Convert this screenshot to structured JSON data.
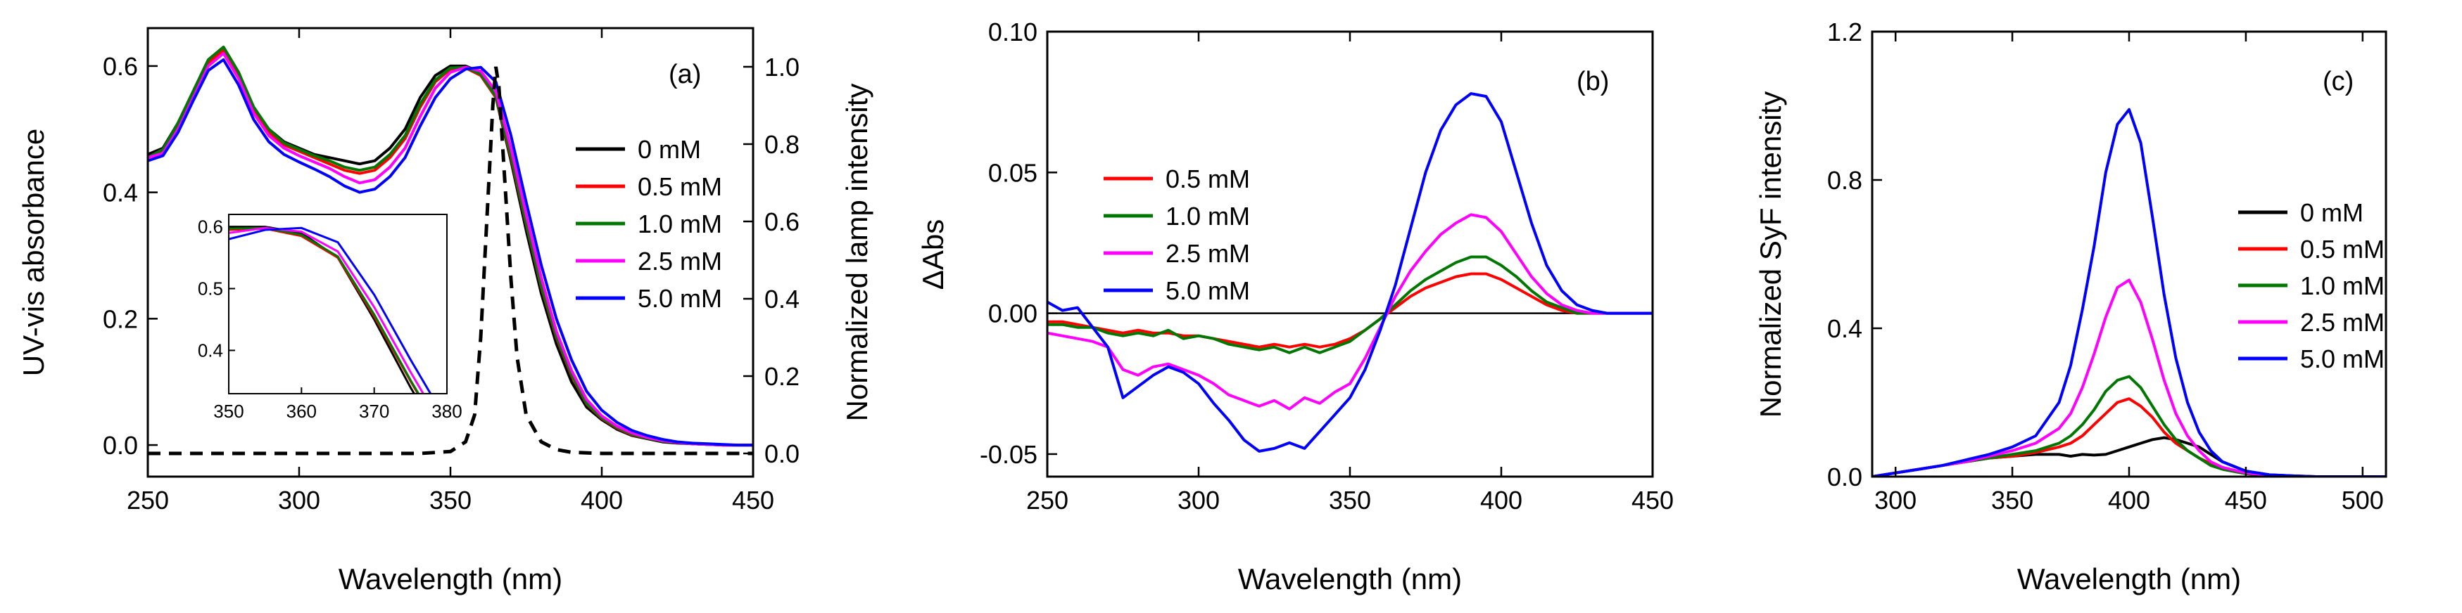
{
  "chart_data": [
    {
      "type": "line",
      "panel_label": "(a)",
      "xlabel": "Wavelength (nm)",
      "ylabel": "UV-vis absorbance",
      "y2label": "Normalized lamp intensity",
      "xlim": [
        250,
        450
      ],
      "ylim": [
        -0.05,
        0.66
      ],
      "y2lim": [
        -0.06,
        1.1
      ],
      "xticks": [
        250,
        300,
        350,
        400,
        450
      ],
      "yticks": [
        0.0,
        0.2,
        0.4,
        0.6
      ],
      "ytick_labels": [
        "0.0",
        "0.2",
        "0.4",
        "0.6"
      ],
      "y2ticks": [
        0.0,
        0.2,
        0.4,
        0.6,
        0.8,
        1.0
      ],
      "y2tick_labels": [
        "0.0",
        "0.2",
        "0.4",
        "0.6",
        "0.8",
        "1.0"
      ],
      "legend_position": "right",
      "x": [
        250,
        255,
        260,
        265,
        270,
        275,
        280,
        285,
        290,
        295,
        300,
        305,
        310,
        315,
        320,
        325,
        330,
        335,
        340,
        345,
        350,
        355,
        360,
        365,
        370,
        375,
        380,
        385,
        390,
        395,
        400,
        405,
        410,
        415,
        420,
        425,
        430,
        435,
        440,
        445,
        450
      ],
      "series": [
        {
          "name": "0 mM",
          "color": "#000000",
          "values": [
            0.46,
            0.47,
            0.51,
            0.56,
            0.61,
            0.63,
            0.59,
            0.53,
            0.5,
            0.48,
            0.47,
            0.46,
            0.455,
            0.45,
            0.445,
            0.45,
            0.47,
            0.5,
            0.55,
            0.585,
            0.6,
            0.6,
            0.59,
            0.55,
            0.45,
            0.34,
            0.24,
            0.16,
            0.1,
            0.06,
            0.04,
            0.025,
            0.015,
            0.01,
            0.005,
            0.003,
            0.002,
            0.001,
            0.0,
            0.0,
            0.0
          ]
        },
        {
          "name": "0.5 mM",
          "color": "#ff0000",
          "values": [
            0.455,
            0.465,
            0.505,
            0.555,
            0.605,
            0.625,
            0.585,
            0.53,
            0.495,
            0.475,
            0.465,
            0.455,
            0.445,
            0.435,
            0.43,
            0.435,
            0.455,
            0.485,
            0.535,
            0.575,
            0.595,
            0.597,
            0.585,
            0.55,
            0.455,
            0.35,
            0.25,
            0.17,
            0.11,
            0.065,
            0.042,
            0.027,
            0.016,
            0.011,
            0.006,
            0.004,
            0.002,
            0.001,
            0.0,
            0.0,
            0.0
          ]
        },
        {
          "name": "1.0 mM",
          "color": "#007700",
          "values": [
            0.455,
            0.468,
            0.51,
            0.56,
            0.61,
            0.63,
            0.59,
            0.535,
            0.5,
            0.478,
            0.468,
            0.458,
            0.45,
            0.44,
            0.435,
            0.44,
            0.46,
            0.49,
            0.54,
            0.578,
            0.597,
            0.598,
            0.587,
            0.552,
            0.458,
            0.352,
            0.252,
            0.172,
            0.112,
            0.066,
            0.043,
            0.028,
            0.017,
            0.011,
            0.006,
            0.004,
            0.002,
            0.001,
            0.0,
            0.0,
            0.0
          ]
        },
        {
          "name": "2.5 mM",
          "color": "#ff00ff",
          "values": [
            0.455,
            0.462,
            0.5,
            0.55,
            0.6,
            0.62,
            0.58,
            0.525,
            0.49,
            0.47,
            0.458,
            0.448,
            0.438,
            0.425,
            0.415,
            0.42,
            0.44,
            0.47,
            0.52,
            0.565,
            0.59,
            0.598,
            0.592,
            0.56,
            0.47,
            0.365,
            0.265,
            0.18,
            0.118,
            0.072,
            0.046,
            0.03,
            0.019,
            0.012,
            0.007,
            0.004,
            0.002,
            0.001,
            0.0,
            0.0,
            0.0
          ]
        },
        {
          "name": "5.0 mM",
          "color": "#0000ff",
          "values": [
            0.45,
            0.458,
            0.495,
            0.545,
            0.593,
            0.61,
            0.57,
            0.515,
            0.48,
            0.46,
            0.448,
            0.437,
            0.425,
            0.41,
            0.4,
            0.405,
            0.425,
            0.455,
            0.505,
            0.55,
            0.58,
            0.595,
            0.598,
            0.575,
            0.49,
            0.385,
            0.285,
            0.2,
            0.135,
            0.085,
            0.055,
            0.036,
            0.023,
            0.015,
            0.009,
            0.005,
            0.003,
            0.002,
            0.001,
            0.0,
            0.0
          ]
        }
      ],
      "lamp": {
        "name": "lamp",
        "color": "#000000",
        "style": "dashed",
        "x": [
          250,
          300,
          340,
          350,
          355,
          358,
          360,
          362,
          364,
          365,
          366,
          368,
          370,
          372,
          375,
          380,
          385,
          390,
          400,
          450
        ],
        "values": [
          0.0,
          0.0,
          0.0,
          0.005,
          0.03,
          0.1,
          0.3,
          0.6,
          0.9,
          1.0,
          0.95,
          0.7,
          0.45,
          0.25,
          0.1,
          0.03,
          0.01,
          0.003,
          0.0,
          0.0
        ]
      },
      "inset": {
        "xlim": [
          350,
          380
        ],
        "ylim": [
          0.33,
          0.62
        ],
        "xticks": [
          350,
          360,
          370,
          380
        ],
        "yticks": [
          0.4,
          0.5,
          0.6
        ],
        "ytick_labels": [
          "0.4",
          "0.5",
          "0.6"
        ]
      }
    },
    {
      "type": "line",
      "panel_label": "(b)",
      "xlabel": "Wavelength (nm)",
      "ylabel": "ΔAbs",
      "xlim": [
        250,
        450
      ],
      "ylim": [
        -0.058,
        0.1
      ],
      "xticks": [
        250,
        300,
        350,
        400,
        450
      ],
      "yticks": [
        -0.05,
        0.0,
        0.05,
        0.1
      ],
      "ytick_labels": [
        "-0.05",
        "0.00",
        "0.05",
        "0.10"
      ],
      "legend_position": "left",
      "x": [
        250,
        255,
        260,
        265,
        270,
        275,
        280,
        285,
        290,
        295,
        300,
        305,
        310,
        315,
        320,
        325,
        330,
        335,
        340,
        345,
        350,
        355,
        360,
        365,
        370,
        375,
        380,
        385,
        390,
        395,
        400,
        405,
        410,
        415,
        420,
        425,
        430,
        435,
        440,
        445,
        450
      ],
      "series": [
        {
          "name": "0.5 mM",
          "color": "#ff0000",
          "values": [
            -0.003,
            -0.003,
            -0.004,
            -0.005,
            -0.006,
            -0.007,
            -0.006,
            -0.007,
            -0.007,
            -0.008,
            -0.008,
            -0.009,
            -0.01,
            -0.011,
            -0.012,
            -0.011,
            -0.012,
            -0.011,
            -0.012,
            -0.011,
            -0.009,
            -0.006,
            -0.002,
            0.002,
            0.006,
            0.009,
            0.011,
            0.013,
            0.014,
            0.014,
            0.012,
            0.009,
            0.006,
            0.003,
            0.001,
            0.0,
            0.0,
            0.0,
            0.0,
            0.0,
            0.0
          ]
        },
        {
          "name": "1.0 mM",
          "color": "#007700",
          "values": [
            -0.004,
            -0.004,
            -0.005,
            -0.005,
            -0.007,
            -0.008,
            -0.007,
            -0.008,
            -0.006,
            -0.009,
            -0.008,
            -0.009,
            -0.011,
            -0.012,
            -0.013,
            -0.012,
            -0.014,
            -0.012,
            -0.014,
            -0.012,
            -0.01,
            -0.006,
            -0.002,
            0.003,
            0.008,
            0.012,
            0.015,
            0.018,
            0.02,
            0.02,
            0.017,
            0.013,
            0.008,
            0.004,
            0.002,
            0.0,
            0.0,
            0.0,
            0.0,
            0.0,
            0.0
          ]
        },
        {
          "name": "2.5 mM",
          "color": "#ff00ff",
          "values": [
            -0.007,
            -0.008,
            -0.009,
            -0.01,
            -0.012,
            -0.02,
            -0.022,
            -0.019,
            -0.018,
            -0.02,
            -0.022,
            -0.025,
            -0.029,
            -0.031,
            -0.033,
            -0.031,
            -0.034,
            -0.03,
            -0.032,
            -0.028,
            -0.025,
            -0.016,
            -0.005,
            0.006,
            0.015,
            0.022,
            0.028,
            0.032,
            0.035,
            0.034,
            0.029,
            0.021,
            0.013,
            0.007,
            0.003,
            0.001,
            0.0,
            0.0,
            0.0,
            0.0,
            0.0
          ]
        },
        {
          "name": "5.0 mM",
          "color": "#0000ff",
          "values": [
            0.004,
            0.001,
            0.002,
            -0.005,
            -0.012,
            -0.03,
            -0.026,
            -0.022,
            -0.019,
            -0.021,
            -0.025,
            -0.032,
            -0.038,
            -0.045,
            -0.049,
            -0.048,
            -0.046,
            -0.048,
            -0.042,
            -0.036,
            -0.03,
            -0.02,
            -0.006,
            0.01,
            0.03,
            0.05,
            0.065,
            0.074,
            0.078,
            0.077,
            0.068,
            0.05,
            0.032,
            0.017,
            0.008,
            0.003,
            0.001,
            0.0,
            0.0,
            0.0,
            0.0
          ]
        }
      ]
    },
    {
      "type": "line",
      "panel_label": "(c)",
      "xlabel": "Wavelength (nm)",
      "ylabel": "Normalized SyF intensity",
      "xlim": [
        290,
        510
      ],
      "ylim": [
        0.0,
        1.2
      ],
      "xticks": [
        300,
        350,
        400,
        450,
        500
      ],
      "yticks": [
        0.0,
        0.4,
        0.8,
        1.2
      ],
      "ytick_labels": [
        "0.0",
        "0.4",
        "0.8",
        "1.2"
      ],
      "legend_position": "right",
      "x": [
        290,
        300,
        310,
        320,
        330,
        340,
        350,
        360,
        370,
        375,
        380,
        385,
        390,
        395,
        400,
        405,
        410,
        415,
        420,
        425,
        430,
        435,
        440,
        450,
        460,
        470,
        480,
        490,
        500,
        510
      ],
      "series": [
        {
          "name": "0 mM",
          "color": "#000000",
          "values": [
            0.0,
            0.01,
            0.02,
            0.03,
            0.04,
            0.05,
            0.055,
            0.06,
            0.06,
            0.055,
            0.06,
            0.058,
            0.06,
            0.07,
            0.08,
            0.09,
            0.1,
            0.105,
            0.1,
            0.09,
            0.08,
            0.06,
            0.04,
            0.015,
            0.005,
            0.002,
            0.0,
            0.0,
            0.0,
            0.0
          ]
        },
        {
          "name": "0.5 mM",
          "color": "#ff0000",
          "values": [
            0.0,
            0.01,
            0.02,
            0.03,
            0.04,
            0.05,
            0.055,
            0.065,
            0.08,
            0.09,
            0.11,
            0.14,
            0.17,
            0.2,
            0.21,
            0.19,
            0.16,
            0.12,
            0.09,
            0.07,
            0.05,
            0.035,
            0.02,
            0.008,
            0.003,
            0.0,
            0.0,
            0.0,
            0.0,
            0.0
          ]
        },
        {
          "name": "1.0 mM",
          "color": "#007700",
          "values": [
            0.0,
            0.01,
            0.02,
            0.03,
            0.04,
            0.05,
            0.06,
            0.07,
            0.09,
            0.11,
            0.14,
            0.18,
            0.23,
            0.26,
            0.27,
            0.24,
            0.19,
            0.14,
            0.1,
            0.07,
            0.05,
            0.03,
            0.02,
            0.008,
            0.003,
            0.0,
            0.0,
            0.0,
            0.0,
            0.0
          ]
        },
        {
          "name": "2.5 mM",
          "color": "#ff00ff",
          "values": [
            0.0,
            0.01,
            0.02,
            0.03,
            0.04,
            0.055,
            0.07,
            0.09,
            0.13,
            0.17,
            0.24,
            0.33,
            0.43,
            0.51,
            0.53,
            0.47,
            0.37,
            0.26,
            0.17,
            0.11,
            0.07,
            0.04,
            0.025,
            0.01,
            0.004,
            0.0,
            0.0,
            0.0,
            0.0,
            0.0
          ]
        },
        {
          "name": "5.0 mM",
          "color": "#0000ff",
          "values": [
            0.0,
            0.01,
            0.02,
            0.03,
            0.045,
            0.06,
            0.08,
            0.11,
            0.2,
            0.3,
            0.45,
            0.62,
            0.82,
            0.95,
            0.99,
            0.9,
            0.7,
            0.49,
            0.32,
            0.2,
            0.12,
            0.07,
            0.04,
            0.015,
            0.005,
            0.002,
            0.0,
            0.0,
            0.0,
            0.0
          ]
        }
      ]
    }
  ]
}
